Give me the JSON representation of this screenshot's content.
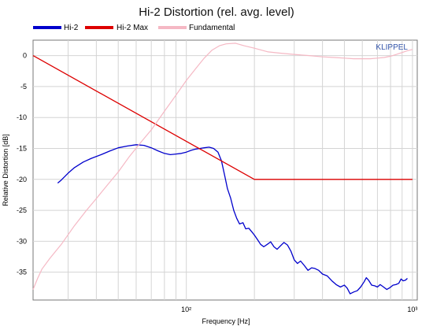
{
  "chart_data": {
    "type": "line",
    "title": "Hi-2 Distortion (rel. avg. level)",
    "xlabel": "Frequency [Hz]",
    "ylabel": "Relative Distortion  [dB]",
    "watermark": "KLIPPEL",
    "x_scale": "log",
    "xlim": [
      21,
      1050
    ],
    "ylim": [
      -39.5,
      2.5
    ],
    "y_ticks": [
      0,
      -5,
      -10,
      -15,
      -20,
      -25,
      -30,
      -35
    ],
    "y_tick_labels": [
      "0",
      "-5",
      "-10",
      "-15",
      "-20",
      "-25",
      "-30",
      "-35"
    ],
    "x_ticks_labeled": [
      {
        "value": 100,
        "label": "10²"
      },
      {
        "value": 1000,
        "label": "10³"
      }
    ],
    "grid": true,
    "legend_position": "top",
    "series": [
      {
        "name": "Hi-2",
        "color": "#0000cc",
        "points": [
          [
            27,
            -20.6
          ],
          [
            28,
            -20.1
          ],
          [
            30,
            -19.0
          ],
          [
            32,
            -18.1
          ],
          [
            35,
            -17.2
          ],
          [
            38,
            -16.6
          ],
          [
            42,
            -16.0
          ],
          [
            46,
            -15.4
          ],
          [
            50,
            -14.9
          ],
          [
            55,
            -14.6
          ],
          [
            60,
            -14.4
          ],
          [
            65,
            -14.5
          ],
          [
            70,
            -14.9
          ],
          [
            75,
            -15.4
          ],
          [
            80,
            -15.8
          ],
          [
            85,
            -16.0
          ],
          [
            90,
            -15.9
          ],
          [
            95,
            -15.8
          ],
          [
            100,
            -15.6
          ],
          [
            105,
            -15.3
          ],
          [
            110,
            -15.1
          ],
          [
            115,
            -15.0
          ],
          [
            120,
            -14.9
          ],
          [
            126,
            -14.8
          ],
          [
            132,
            -15.0
          ],
          [
            138,
            -15.6
          ],
          [
            143,
            -17.0
          ],
          [
            148,
            -19.5
          ],
          [
            152,
            -21.5
          ],
          [
            157,
            -23.0
          ],
          [
            162,
            -25.0
          ],
          [
            167,
            -26.3
          ],
          [
            172,
            -27.2
          ],
          [
            178,
            -27.0
          ],
          [
            183,
            -28.0
          ],
          [
            189,
            -27.9
          ],
          [
            195,
            -28.5
          ],
          [
            200,
            -29.0
          ],
          [
            207,
            -29.8
          ],
          [
            213,
            -30.5
          ],
          [
            220,
            -30.9
          ],
          [
            228,
            -30.5
          ],
          [
            236,
            -30.1
          ],
          [
            244,
            -30.9
          ],
          [
            252,
            -31.3
          ],
          [
            260,
            -30.8
          ],
          [
            270,
            -30.2
          ],
          [
            280,
            -30.6
          ],
          [
            290,
            -31.6
          ],
          [
            300,
            -33.0
          ],
          [
            310,
            -33.6
          ],
          [
            320,
            -33.2
          ],
          [
            332,
            -33.9
          ],
          [
            345,
            -34.7
          ],
          [
            358,
            -34.3
          ],
          [
            370,
            -34.4
          ],
          [
            385,
            -34.7
          ],
          [
            400,
            -35.3
          ],
          [
            420,
            -35.6
          ],
          [
            440,
            -36.4
          ],
          [
            460,
            -37.0
          ],
          [
            480,
            -37.4
          ],
          [
            500,
            -37.1
          ],
          [
            515,
            -37.6
          ],
          [
            530,
            -38.5
          ],
          [
            550,
            -38.2
          ],
          [
            570,
            -38.0
          ],
          [
            590,
            -37.4
          ],
          [
            610,
            -36.6
          ],
          [
            625,
            -35.9
          ],
          [
            640,
            -36.3
          ],
          [
            660,
            -37.1
          ],
          [
            680,
            -37.2
          ],
          [
            700,
            -37.4
          ],
          [
            720,
            -37.0
          ],
          [
            745,
            -37.4
          ],
          [
            770,
            -37.8
          ],
          [
            795,
            -37.5
          ],
          [
            820,
            -37.1
          ],
          [
            845,
            -37.0
          ],
          [
            870,
            -36.8
          ],
          [
            890,
            -36.1
          ],
          [
            910,
            -36.4
          ],
          [
            930,
            -36.3
          ],
          [
            950,
            -36.0
          ]
        ]
      },
      {
        "name": "Hi-2 Max",
        "color": "#dd0000",
        "points": [
          [
            21,
            0
          ],
          [
            200,
            -20
          ],
          [
            1000,
            -20
          ]
        ]
      },
      {
        "name": "Fundamental",
        "color": "#f5b8c4",
        "points": [
          [
            21,
            -37.8
          ],
          [
            22,
            -36.0
          ],
          [
            23,
            -34.5
          ],
          [
            25,
            -32.7
          ],
          [
            28,
            -30.5
          ],
          [
            32,
            -27.5
          ],
          [
            36,
            -25.1
          ],
          [
            40,
            -23.1
          ],
          [
            45,
            -20.8
          ],
          [
            50,
            -18.8
          ],
          [
            56,
            -16.3
          ],
          [
            63,
            -14.0
          ],
          [
            70,
            -12.0
          ],
          [
            80,
            -9.0
          ],
          [
            90,
            -6.4
          ],
          [
            100,
            -4.0
          ],
          [
            110,
            -2.1
          ],
          [
            120,
            -0.4
          ],
          [
            130,
            0.9
          ],
          [
            140,
            1.6
          ],
          [
            150,
            1.9
          ],
          [
            165,
            2.0
          ],
          [
            180,
            1.6
          ],
          [
            200,
            1.2
          ],
          [
            230,
            0.6
          ],
          [
            260,
            0.4
          ],
          [
            300,
            0.2
          ],
          [
            350,
            0.0
          ],
          [
            400,
            -0.2
          ],
          [
            450,
            -0.3
          ],
          [
            500,
            -0.4
          ],
          [
            550,
            -0.5
          ],
          [
            600,
            -0.5
          ],
          [
            650,
            -0.5
          ],
          [
            700,
            -0.4
          ],
          [
            750,
            -0.3
          ],
          [
            800,
            -0.1
          ],
          [
            850,
            0.2
          ],
          [
            900,
            0.5
          ],
          [
            950,
            0.8
          ],
          [
            1000,
            1.0
          ]
        ]
      }
    ]
  }
}
